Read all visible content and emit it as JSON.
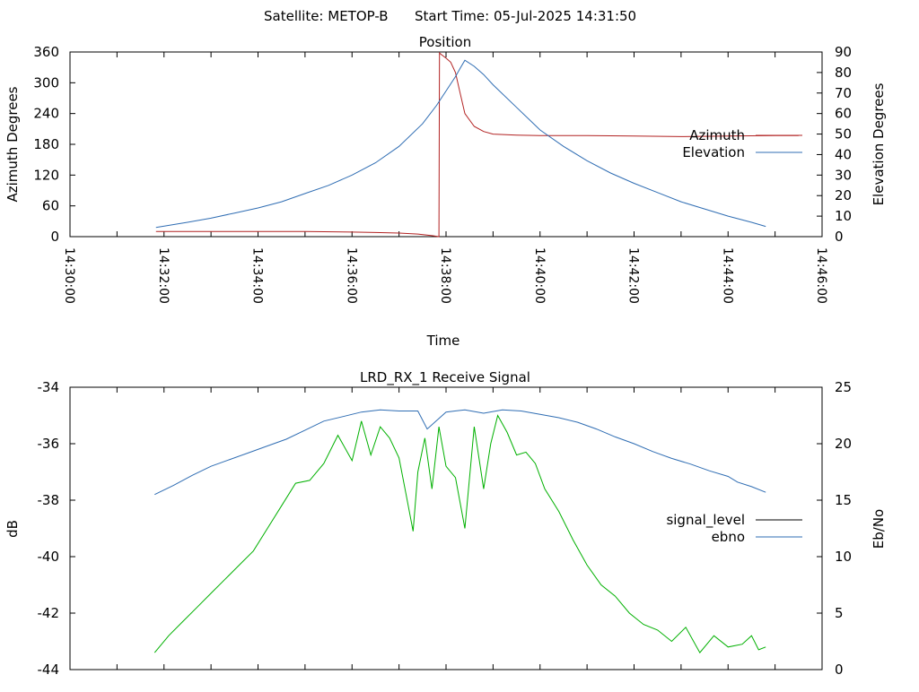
{
  "header": {
    "satellite": "Satellite: METOP-B",
    "start_time": "Start Time: 05-Jul-2025 14:31:50"
  },
  "chart_data": [
    {
      "type": "line",
      "title": "Position",
      "xlabel": "Time",
      "ylabel": "Azimuth Degrees",
      "y2label": "Elevation Degrees",
      "x_ticks": [
        "14:30:00",
        "14:32:00",
        "14:34:00",
        "14:36:00",
        "14:38:00",
        "14:40:00",
        "14:42:00",
        "14:44:00",
        "14:46:00"
      ],
      "x_range_minutes": [
        0,
        16
      ],
      "ylim": [
        0,
        360
      ],
      "y_ticks": [
        "0",
        "60",
        "120",
        "180",
        "240",
        "300",
        "360"
      ],
      "y2lim": [
        0,
        90
      ],
      "y2_ticks": [
        "0",
        "10",
        "20",
        "30",
        "40",
        "50",
        "60",
        "70",
        "80",
        "90"
      ],
      "grid": false,
      "legend": "right",
      "series": [
        {
          "name": "Azimuth",
          "axis": "y",
          "color": "#b22222",
          "x_minutes": [
            1.83,
            3,
            4,
            5,
            6,
            6.5,
            7,
            7.4,
            7.7,
            7.85,
            7.86,
            7.9,
            8.0,
            8.1,
            8.2,
            8.3,
            8.4,
            8.6,
            8.8,
            9,
            9.5,
            10,
            11,
            12,
            13,
            14,
            15,
            15.5
          ],
          "values": [
            10,
            10,
            10,
            10,
            9,
            8,
            7,
            5,
            2,
            0,
            358,
            355,
            348,
            340,
            320,
            280,
            240,
            215,
            205,
            200,
            198,
            197,
            197,
            196,
            195,
            196,
            197,
            197
          ]
        },
        {
          "name": "Elevation",
          "axis": "y2",
          "color": "#2f6db3",
          "x_minutes": [
            1.83,
            2.5,
            3,
            3.5,
            4,
            4.5,
            5,
            5.5,
            6,
            6.5,
            7,
            7.5,
            7.8,
            8.0,
            8.2,
            8.3,
            8.4,
            8.6,
            8.8,
            9,
            9.5,
            10,
            10.5,
            11,
            11.5,
            12,
            12.5,
            13,
            13.5,
            14,
            14.5,
            14.8
          ],
          "values": [
            4.5,
            7,
            9,
            11.5,
            14,
            17,
            21,
            25,
            30,
            36,
            44,
            55,
            64,
            71,
            78,
            82,
            86,
            83,
            79,
            74,
            63,
            52,
            44,
            37,
            31,
            26,
            21.5,
            17,
            13.5,
            10,
            7,
            5
          ]
        }
      ]
    },
    {
      "type": "line",
      "title": "LRD_RX_1 Receive Signal",
      "ylabel": "dB",
      "y2label": "Eb/No",
      "x_range_minutes": [
        0,
        16
      ],
      "ylim": [
        -44,
        -34
      ],
      "y_ticks": [
        "-44",
        "-42",
        "-40",
        "-38",
        "-36",
        "-34"
      ],
      "y2lim": [
        0,
        25
      ],
      "y2_ticks": [
        "0",
        "5",
        "10",
        "15",
        "20",
        "25"
      ],
      "grid": false,
      "legend": "right",
      "series": [
        {
          "name": "signal_level",
          "axis": "y",
          "color": "#00b000",
          "x_minutes": [
            1.8,
            2.1,
            2.4,
            2.7,
            3.0,
            3.3,
            3.6,
            3.9,
            4.2,
            4.5,
            4.8,
            5.1,
            5.4,
            5.7,
            6.0,
            6.2,
            6.4,
            6.6,
            6.8,
            7.0,
            7.15,
            7.3,
            7.4,
            7.55,
            7.7,
            7.85,
            8.0,
            8.2,
            8.4,
            8.6,
            8.8,
            8.95,
            9.1,
            9.3,
            9.5,
            9.7,
            9.9,
            10.1,
            10.4,
            10.7,
            11.0,
            11.3,
            11.6,
            11.9,
            12.2,
            12.5,
            12.8,
            13.1,
            13.4,
            13.7,
            14.0,
            14.3,
            14.5,
            14.65,
            14.8
          ],
          "values": [
            -43.4,
            -42.8,
            -42.3,
            -41.8,
            -41.3,
            -40.8,
            -40.3,
            -39.8,
            -39.0,
            -38.2,
            -37.4,
            -37.3,
            -36.7,
            -35.7,
            -36.6,
            -35.2,
            -36.4,
            -35.4,
            -35.8,
            -36.5,
            -37.8,
            -39.1,
            -37.0,
            -35.8,
            -37.6,
            -35.4,
            -36.8,
            -37.2,
            -39.0,
            -35.4,
            -37.6,
            -36.0,
            -35.0,
            -35.6,
            -36.4,
            -36.3,
            -36.7,
            -37.6,
            -38.4,
            -39.4,
            -40.3,
            -41.0,
            -41.4,
            -42.0,
            -42.4,
            -42.6,
            -43.0,
            -42.5,
            -43.4,
            -42.8,
            -43.2,
            -43.1,
            -42.8,
            -43.3,
            -43.2
          ]
        },
        {
          "name": "ebno",
          "axis": "y2",
          "color": "#2f6db3",
          "x_minutes": [
            1.8,
            2.2,
            2.6,
            3.0,
            3.4,
            3.8,
            4.2,
            4.6,
            5.0,
            5.4,
            5.8,
            6.2,
            6.6,
            7.0,
            7.4,
            7.6,
            8.0,
            8.4,
            8.8,
            9.2,
            9.6,
            10.0,
            10.4,
            10.8,
            11.2,
            11.6,
            12.0,
            12.4,
            12.8,
            13.2,
            13.6,
            14.0,
            14.2,
            14.5,
            14.8
          ],
          "values": [
            15.5,
            16.3,
            17.2,
            18.0,
            18.6,
            19.2,
            19.8,
            20.4,
            21.2,
            22.0,
            22.4,
            22.8,
            23.0,
            22.9,
            22.9,
            21.3,
            22.8,
            23.0,
            22.7,
            23.0,
            22.9,
            22.6,
            22.3,
            21.9,
            21.3,
            20.6,
            20.0,
            19.3,
            18.7,
            18.2,
            17.6,
            17.1,
            16.6,
            16.2,
            15.7
          ]
        }
      ]
    }
  ]
}
